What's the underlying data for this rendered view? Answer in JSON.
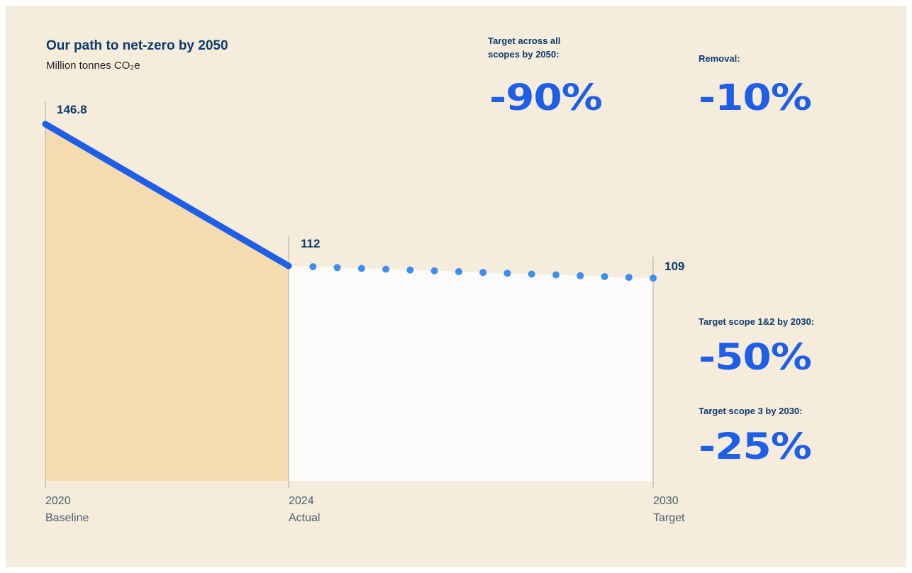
{
  "colors": {
    "background": "#f6ecdc",
    "baseline_fill": "#f4dcae",
    "target_fill": "#fdfbf9",
    "actual_line": "#1f5fe8",
    "projection_dots": "#3d8fef",
    "title": "#0b3a6e",
    "kpi_value": "#1f5fe8"
  },
  "header": {
    "title": "Our path to net-zero by 2050",
    "subtitle": "Million tonnes CO₂e"
  },
  "kpis": {
    "all_scopes": {
      "label": "Target across all scopes by 2050:",
      "value": "-90%"
    },
    "removal": {
      "label": "Removal:",
      "value": "-10%"
    },
    "scope12": {
      "label": "Target scope 1&2 by 2030:",
      "value": "-50%"
    },
    "scope3": {
      "label": "Target scope 3 by 2030:",
      "value": "-25%"
    }
  },
  "chart_data": {
    "type": "line",
    "title": "Our path to net-zero by 2050",
    "ylabel": "Million tonnes CO₂e",
    "grid": false,
    "x": [
      2020,
      2024,
      2030
    ],
    "tick_labels": [
      {
        "year": "2020",
        "label": "Baseline"
      },
      {
        "year": "2024",
        "label": "Actual"
      },
      {
        "year": "2030",
        "label": "Target"
      }
    ],
    "series": [
      {
        "style": "solid",
        "x": [
          2020,
          2024
        ],
        "values": [
          146.8,
          112
        ]
      },
      {
        "style": "dotted",
        "x": [
          2024,
          2030
        ],
        "values": [
          112,
          109
        ]
      }
    ],
    "data_labels": [
      {
        "x": 2020,
        "value": "146.8"
      },
      {
        "x": 2024,
        "value": "112"
      },
      {
        "x": 2030,
        "value": "109"
      }
    ]
  }
}
